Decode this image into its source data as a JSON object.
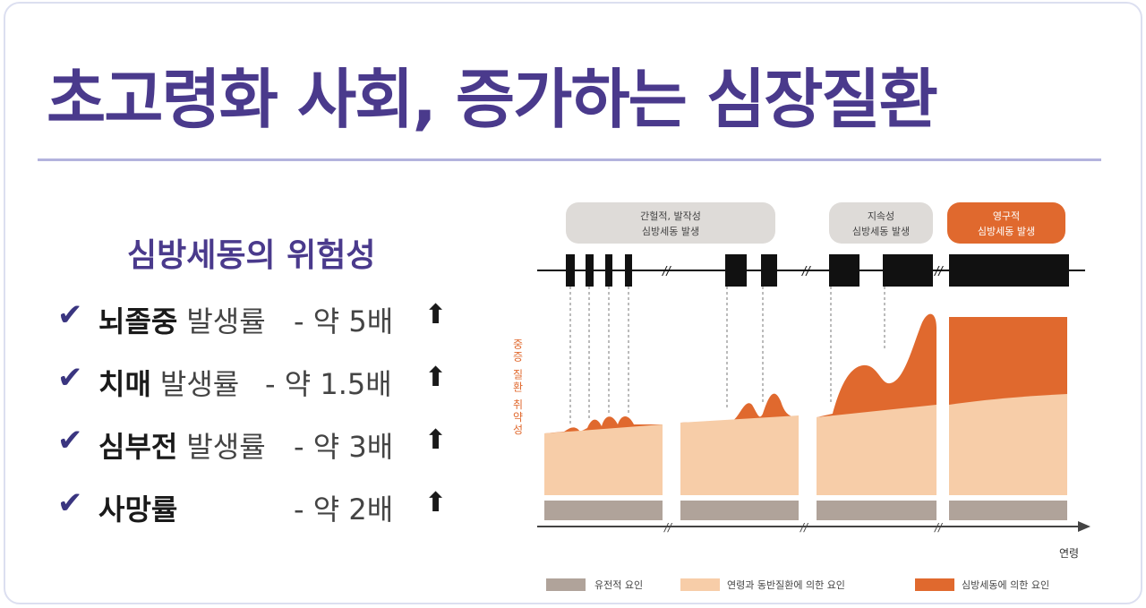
{
  "title": "초고령화 사회, 증가하는 심장질환",
  "risk": {
    "heading": "심방세동의 위험성",
    "items": [
      {
        "name": "뇌졸중",
        "metric": "발생률",
        "value": "- 약 5배"
      },
      {
        "name": "치매",
        "metric": "발생률",
        "value": "- 약 1.5배"
      },
      {
        "name": "심부전",
        "metric": "발생률",
        "value": "- 약 3배"
      },
      {
        "name": "사망률",
        "metric": "",
        "value": "- 약 2배"
      }
    ],
    "check_icon": "checkmark-icon",
    "arrow_icon": "up-arrow-icon"
  },
  "diagram": {
    "phase_labels": [
      {
        "line1": "간헐적, 발작성",
        "line2": "심방세동 발생"
      },
      {
        "line1": "지속성",
        "line2": "심방세동 발생"
      },
      {
        "line1": "영구적",
        "line2": "심방세동 발생"
      }
    ],
    "y_axis_label": "중증 질환 취약성",
    "x_axis_label": "연령",
    "legend": [
      {
        "label": "유전적 요인",
        "color": "#b0a39a"
      },
      {
        "label": "연령과 동반질환에 의한 요인",
        "color": "#f7cda8"
      },
      {
        "label": "심방세동에 의한 요인",
        "color": "#e0692e"
      }
    ],
    "colors": {
      "phase_bubble": "#dedbd8",
      "phase_bubble_accent": "#e0692e",
      "episode_bar": "#111111",
      "genetic": "#b0a39a",
      "age": "#f7cda8",
      "af": "#e0692e"
    }
  }
}
